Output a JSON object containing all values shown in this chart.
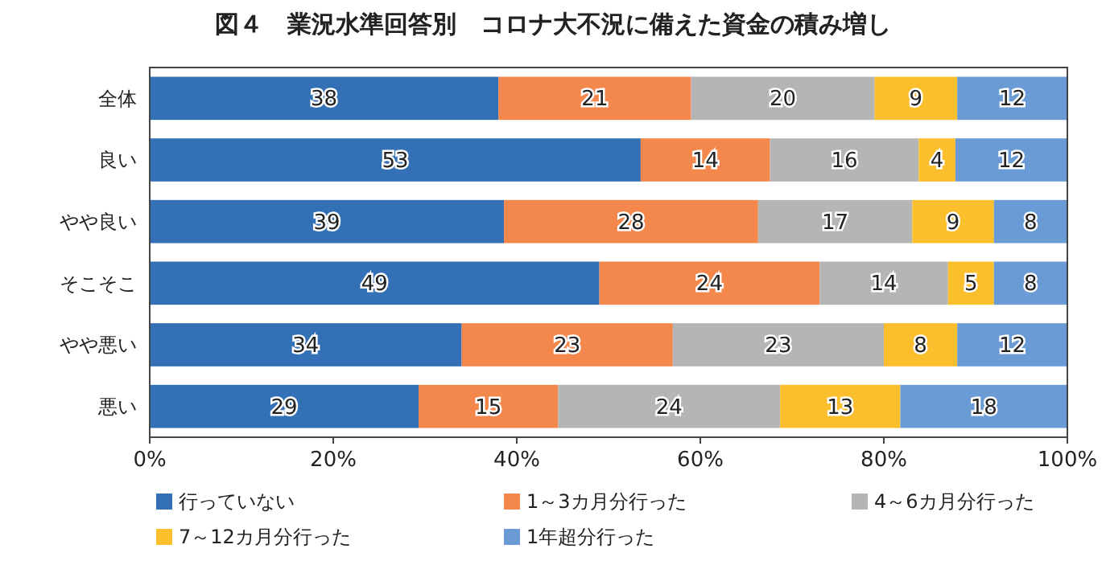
{
  "chart_data": {
    "type": "bar",
    "orientation": "horizontal",
    "stacked": true,
    "title": "図４　業況水準回答別　コロナ大不況に備えた資金の積み増し",
    "categories": [
      "全体",
      "良い",
      "やや良い",
      "そこそこ",
      "やや悪い",
      "悪い"
    ],
    "series": [
      {
        "name": "行っていない",
        "color": "#3470b5",
        "values": [
          38,
          53.5,
          38.6,
          49,
          34,
          29.3
        ],
        "value_labels": [
          "38",
          "53",
          "39",
          "49",
          "34",
          "29"
        ]
      },
      {
        "name": "1～3カ月分行った",
        "color": "#f4874b",
        "values": [
          21,
          14.1,
          27.7,
          24,
          23,
          15.2
        ],
        "value_labels": [
          "21",
          "14",
          "28",
          "24",
          "23",
          "15"
        ]
      },
      {
        "name": "4～6カ月分行った",
        "color": "#b5b5b5",
        "values": [
          20,
          16.2,
          16.8,
          14,
          23,
          24.2
        ],
        "value_labels": [
          "20",
          "16",
          "17",
          "14",
          "23",
          "24"
        ]
      },
      {
        "name": "7～12カ月分行った",
        "color": "#fbbf2d",
        "values": [
          9,
          4,
          8.9,
          5,
          8,
          13.1
        ],
        "value_labels": [
          "9",
          "4",
          "9",
          "5",
          "8",
          "13"
        ]
      },
      {
        "name": "1年超分行った",
        "color": "#6a9bd4",
        "values": [
          12,
          12.2,
          8,
          8,
          12,
          18.2
        ],
        "value_labels": [
          "12",
          "12",
          "8",
          "8",
          "12",
          "18"
        ]
      }
    ],
    "xlim": [
      0,
      100
    ],
    "xticks": [
      {
        "value": 0,
        "label": "0%"
      },
      {
        "value": 20,
        "label": "20%"
      },
      {
        "value": 40,
        "label": "40%"
      },
      {
        "value": 60,
        "label": "60%"
      },
      {
        "value": 80,
        "label": "80%"
      },
      {
        "value": 100,
        "label": "100%"
      }
    ],
    "legend": "bottom",
    "grid": false
  }
}
